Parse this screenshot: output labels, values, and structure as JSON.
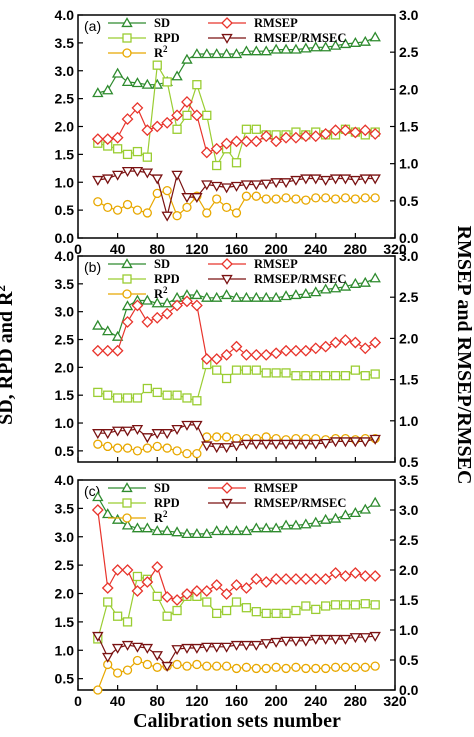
{
  "figure": {
    "xlabel": "Calibration sets number",
    "ylabel_left": "SD,  RPD and R",
    "ylabel_left_sup": "2",
    "ylabel_right": "RMSEP and RMSEP/RMSEC"
  },
  "legend": {
    "SD": "SD",
    "RPD": "RPD",
    "R2": "R",
    "R2_sup": "2",
    "RMSEP": "RMSEP",
    "RATIO": "RMSEP/RMSEC"
  },
  "colors": {
    "SD": "#2e8b2e",
    "RPD": "#9acd32",
    "R2": "#e8a800",
    "RMSEP": "#e8342c",
    "RATIO": "#7a1212"
  },
  "chart_data": [
    {
      "panel_label": "(a)",
      "type": "line",
      "x": [
        20,
        30,
        40,
        50,
        60,
        70,
        80,
        90,
        100,
        110,
        120,
        130,
        140,
        150,
        160,
        170,
        180,
        190,
        200,
        210,
        220,
        230,
        240,
        250,
        260,
        270,
        280,
        290,
        300
      ],
      "xlim": [
        0,
        320
      ],
      "xticks": [
        0,
        40,
        80,
        120,
        160,
        200,
        240,
        280,
        320
      ],
      "ylim_left": [
        0,
        4.0
      ],
      "yticks_left": [
        0.0,
        0.5,
        1.0,
        1.5,
        2.0,
        2.5,
        3.0,
        3.5,
        4.0
      ],
      "ylim_right": [
        0,
        3.0
      ],
      "yticks_right": [
        0.0,
        0.5,
        1.0,
        1.5,
        2.0,
        2.5,
        3.0
      ],
      "show_xtick_labels": true,
      "series": [
        {
          "key": "SD",
          "axis": "left",
          "marker": "triangle-up",
          "values": [
            2.6,
            2.65,
            2.95,
            2.8,
            2.78,
            2.75,
            2.75,
            2.8,
            2.9,
            3.2,
            3.3,
            3.3,
            3.3,
            3.3,
            3.3,
            3.35,
            3.35,
            3.35,
            3.38,
            3.38,
            3.38,
            3.4,
            3.42,
            3.42,
            3.45,
            3.48,
            3.5,
            3.52,
            3.6
          ]
        },
        {
          "key": "RPD",
          "axis": "left",
          "marker": "square",
          "values": [
            1.7,
            1.65,
            1.6,
            1.5,
            1.55,
            1.45,
            3.1,
            2.8,
            1.95,
            2.2,
            2.75,
            2.2,
            1.3,
            1.6,
            1.35,
            1.95,
            1.95,
            1.85,
            1.85,
            1.85,
            1.9,
            1.85,
            1.9,
            1.85,
            1.85,
            1.95,
            1.9,
            1.85,
            1.9
          ]
        },
        {
          "key": "R2",
          "axis": "left",
          "marker": "circle",
          "values": [
            0.65,
            0.55,
            0.5,
            0.6,
            0.5,
            0.45,
            0.8,
            0.85,
            0.4,
            0.55,
            0.75,
            0.45,
            0.7,
            0.55,
            0.45,
            0.75,
            0.75,
            0.7,
            0.7,
            0.72,
            0.7,
            0.68,
            0.72,
            0.72,
            0.7,
            0.72,
            0.7,
            0.72,
            0.72
          ]
        },
        {
          "key": "RMSEP",
          "axis": "right",
          "marker": "diamond",
          "values": [
            1.33,
            1.33,
            1.35,
            1.6,
            1.75,
            1.45,
            1.5,
            1.55,
            1.65,
            1.83,
            1.65,
            1.15,
            1.2,
            1.27,
            1.3,
            1.3,
            1.3,
            1.37,
            1.3,
            1.35,
            1.35,
            1.37,
            1.37,
            1.4,
            1.45,
            1.45,
            1.42,
            1.45,
            1.4
          ]
        },
        {
          "key": "RATIO",
          "axis": "right",
          "marker": "triangle-down",
          "values": [
            0.78,
            0.8,
            0.85,
            0.9,
            0.9,
            0.88,
            0.8,
            0.3,
            0.85,
            0.55,
            0.55,
            0.72,
            0.7,
            0.68,
            0.7,
            0.72,
            0.72,
            0.73,
            0.75,
            0.75,
            0.78,
            0.8,
            0.8,
            0.78,
            0.8,
            0.8,
            0.78,
            0.8,
            0.8
          ]
        }
      ]
    },
    {
      "panel_label": "(b)",
      "type": "line",
      "x": [
        20,
        30,
        40,
        50,
        60,
        70,
        80,
        90,
        100,
        110,
        120,
        130,
        140,
        150,
        160,
        170,
        180,
        190,
        200,
        210,
        220,
        230,
        240,
        250,
        260,
        270,
        280,
        290,
        300
      ],
      "xlim": [
        0,
        320
      ],
      "xticks": [
        0,
        40,
        80,
        120,
        160,
        200,
        240,
        280,
        320
      ],
      "ylim_left": [
        0.3,
        4.0
      ],
      "yticks_left": [
        0.5,
        1.0,
        1.5,
        2.0,
        2.5,
        3.0,
        3.5,
        4.0
      ],
      "ylim_right": [
        0.5,
        3.0
      ],
      "yticks_right": [
        0.5,
        1.0,
        1.5,
        2.0,
        2.5,
        3.0
      ],
      "show_xtick_labels": false,
      "series": [
        {
          "key": "SD",
          "axis": "left",
          "marker": "triangle-up",
          "values": [
            2.75,
            2.65,
            2.55,
            3.1,
            3.2,
            3.2,
            3.15,
            3.15,
            3.25,
            3.3,
            3.3,
            3.25,
            3.25,
            3.3,
            3.25,
            3.25,
            3.25,
            3.25,
            3.25,
            3.28,
            3.3,
            3.32,
            3.35,
            3.4,
            3.42,
            3.45,
            3.5,
            3.52,
            3.6
          ]
        },
        {
          "key": "RPD",
          "axis": "left",
          "marker": "square",
          "values": [
            1.55,
            1.5,
            1.45,
            1.45,
            1.45,
            1.62,
            1.55,
            1.5,
            1.5,
            1.45,
            1.4,
            2.05,
            1.95,
            1.8,
            1.95,
            1.95,
            1.95,
            1.9,
            1.9,
            1.9,
            1.85,
            1.85,
            1.85,
            1.85,
            1.85,
            1.85,
            1.95,
            1.85,
            1.88
          ]
        },
        {
          "key": "R2",
          "axis": "left",
          "marker": "circle",
          "values": [
            0.62,
            0.58,
            0.55,
            0.55,
            0.5,
            0.55,
            0.58,
            0.55,
            0.5,
            0.45,
            0.45,
            0.75,
            0.75,
            0.75,
            0.72,
            0.72,
            0.72,
            0.75,
            0.72,
            0.7,
            0.72,
            0.72,
            0.72,
            0.7,
            0.72,
            0.72,
            0.7,
            0.72,
            0.72
          ]
        },
        {
          "key": "RMSEP",
          "axis": "right",
          "marker": "diamond",
          "values": [
            1.85,
            1.85,
            1.85,
            2.2,
            2.4,
            2.2,
            2.25,
            2.3,
            2.4,
            2.45,
            2.4,
            1.75,
            1.75,
            1.8,
            1.9,
            1.8,
            1.8,
            1.8,
            1.82,
            1.85,
            1.85,
            1.85,
            1.88,
            1.9,
            1.95,
            1.98,
            1.95,
            1.88,
            1.95
          ]
        },
        {
          "key": "RATIO",
          "axis": "right",
          "marker": "triangle-down",
          "values": [
            0.85,
            0.85,
            0.88,
            0.88,
            0.9,
            0.8,
            0.85,
            0.85,
            0.9,
            0.95,
            0.95,
            0.7,
            0.68,
            0.68,
            0.7,
            0.72,
            0.72,
            0.72,
            0.72,
            0.72,
            0.72,
            0.72,
            0.72,
            0.73,
            0.75,
            0.75,
            0.75,
            0.75,
            0.78
          ]
        }
      ]
    },
    {
      "panel_label": "(c)",
      "type": "line",
      "x": [
        20,
        30,
        40,
        50,
        60,
        70,
        80,
        90,
        100,
        110,
        120,
        130,
        140,
        150,
        160,
        170,
        180,
        190,
        200,
        210,
        220,
        230,
        240,
        250,
        260,
        270,
        280,
        290,
        300
      ],
      "xlim": [
        0,
        320
      ],
      "xticks": [
        0,
        40,
        80,
        120,
        160,
        200,
        240,
        280,
        320
      ],
      "ylim_left": [
        0.3,
        4.0
      ],
      "yticks_left": [
        0.5,
        1.0,
        1.5,
        2.0,
        2.5,
        3.0,
        3.5,
        4.0
      ],
      "ylim_right": [
        0,
        3.5
      ],
      "yticks_right": [
        0.0,
        0.5,
        1.0,
        1.5,
        2.0,
        2.5,
        3.0,
        3.5
      ],
      "show_xtick_labels": true,
      "series": [
        {
          "key": "SD",
          "axis": "left",
          "marker": "triangle-up",
          "values": [
            3.7,
            3.4,
            3.3,
            3.2,
            3.15,
            3.15,
            3.1,
            3.1,
            3.08,
            3.05,
            3.05,
            3.05,
            3.1,
            3.1,
            3.1,
            3.1,
            3.15,
            3.15,
            3.15,
            3.2,
            3.2,
            3.22,
            3.25,
            3.3,
            3.32,
            3.38,
            3.42,
            3.48,
            3.6
          ]
        },
        {
          "key": "RPD",
          "axis": "left",
          "marker": "square",
          "values": [
            1.2,
            1.85,
            1.6,
            1.5,
            2.3,
            2.25,
            1.95,
            1.6,
            1.7,
            1.95,
            1.95,
            1.85,
            1.65,
            1.7,
            1.85,
            1.75,
            1.68,
            1.65,
            1.65,
            1.65,
            1.7,
            1.78,
            1.72,
            1.78,
            1.8,
            1.8,
            1.8,
            1.82,
            1.8
          ]
        },
        {
          "key": "R2",
          "axis": "left",
          "marker": "circle",
          "values": [
            0.3,
            0.75,
            0.6,
            0.65,
            0.82,
            0.75,
            0.7,
            0.72,
            0.75,
            0.72,
            0.75,
            0.72,
            0.72,
            0.72,
            0.68,
            0.7,
            0.68,
            0.68,
            0.7,
            0.68,
            0.7,
            0.68,
            0.68,
            0.68,
            0.7,
            0.7,
            0.7,
            0.7,
            0.72
          ]
        },
        {
          "key": "RMSEP",
          "axis": "right",
          "marker": "diamond",
          "values": [
            3.0,
            1.7,
            2.0,
            2.0,
            1.65,
            1.8,
            2.05,
            1.55,
            1.5,
            1.6,
            1.65,
            1.65,
            1.75,
            1.6,
            1.75,
            1.7,
            1.85,
            1.8,
            1.85,
            1.85,
            1.85,
            1.85,
            1.85,
            1.85,
            1.95,
            1.9,
            1.95,
            1.9,
            1.9
          ]
        },
        {
          "key": "RATIO",
          "axis": "right",
          "marker": "triangle-down",
          "values": [
            0.9,
            0.55,
            0.7,
            0.75,
            0.72,
            0.7,
            0.58,
            0.4,
            0.68,
            0.7,
            0.7,
            0.72,
            0.72,
            0.72,
            0.75,
            0.75,
            0.75,
            0.78,
            0.8,
            0.82,
            0.82,
            0.82,
            0.85,
            0.85,
            0.85,
            0.85,
            0.88,
            0.88,
            0.9
          ]
        }
      ]
    }
  ]
}
